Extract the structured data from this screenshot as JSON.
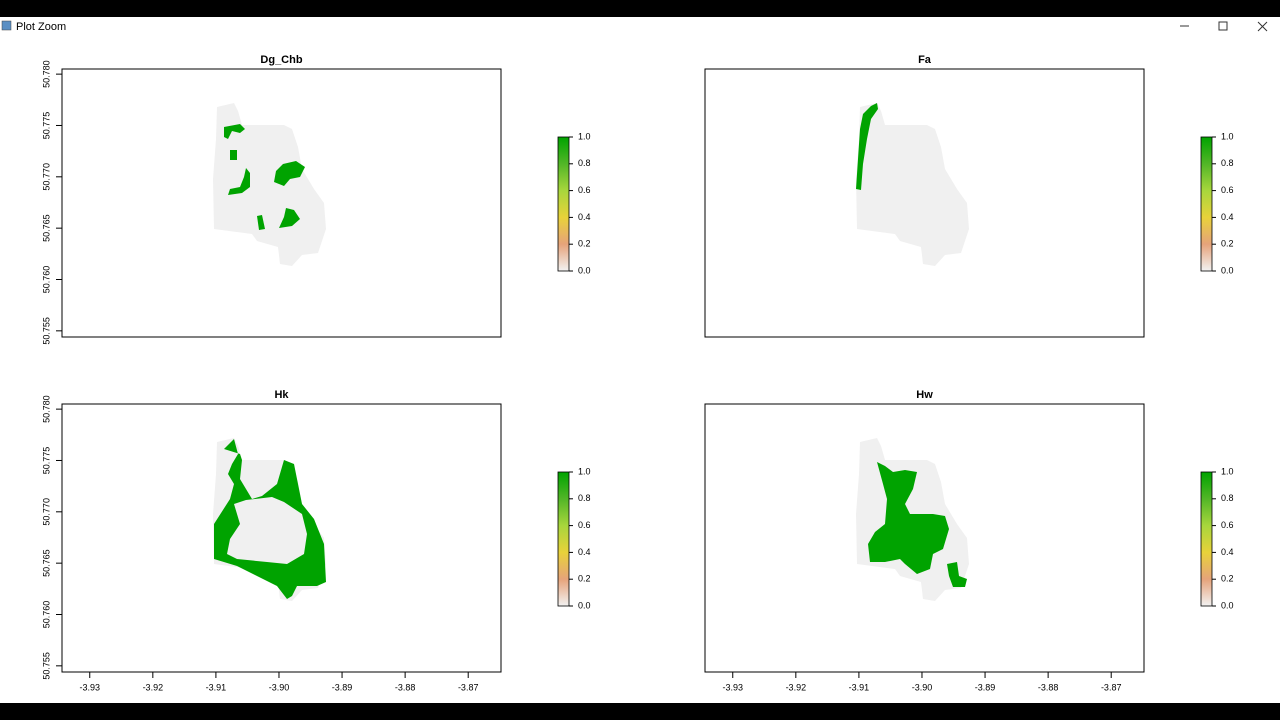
{
  "window": {
    "title": "Plot Zoom"
  },
  "chart_data": [
    {
      "type": "raster",
      "title": "Dg_Chb",
      "xlim": [
        -3.9344,
        -3.8648
      ],
      "ylim": [
        50.7544,
        50.7805
      ],
      "yticks": [
        {
          "value": 50.755,
          "label": "50.755"
        },
        {
          "value": 50.76,
          "label": "50.760"
        },
        {
          "value": 50.765,
          "label": "50.765"
        },
        {
          "value": 50.77,
          "label": "50.770"
        },
        {
          "value": 50.775,
          "label": "50.775"
        },
        {
          "value": 50.78,
          "label": "50.780"
        }
      ],
      "colorbar": {
        "lim": [
          0,
          1
        ],
        "colors": [
          "#f2f2f2",
          "#e6a37a",
          "#e8d23a",
          "#a8d63c",
          "#52b627",
          "#00a300"
        ],
        "ticks": [
          {
            "value": 0,
            "label": "0.0"
          },
          0.2,
          0.4,
          0.6,
          0.8,
          {
            "value": 1,
            "label": "1.0"
          }
        ]
      }
    },
    {
      "type": "raster",
      "title": "Fa",
      "xlim": [
        -3.9344,
        -3.8648
      ],
      "ylim": [
        50.7544,
        50.7805
      ],
      "colorbar": {
        "lim": [
          0,
          1
        ],
        "colors": [
          "#f2f2f2",
          "#e6a37a",
          "#e8d23a",
          "#a8d63c",
          "#52b627",
          "#00a300"
        ],
        "ticks": [
          {
            "value": 0,
            "label": "0.0"
          },
          0.2,
          0.4,
          0.6,
          0.8,
          {
            "value": 1,
            "label": "1.0"
          }
        ]
      }
    },
    {
      "type": "raster",
      "title": "Hk",
      "xlim": [
        -3.9344,
        -3.8648
      ],
      "ylim": [
        50.7544,
        50.7805
      ],
      "xticks": [
        -3.93,
        -3.92,
        -3.91,
        {
          "value": -3.9,
          "label": "-3.90"
        },
        -3.89,
        -3.88,
        -3.87
      ],
      "yticks": [
        {
          "value": 50.755,
          "label": "50.755"
        },
        {
          "value": 50.76,
          "label": "50.760"
        },
        {
          "value": 50.765,
          "label": "50.765"
        },
        {
          "value": 50.77,
          "label": "50.770"
        },
        {
          "value": 50.775,
          "label": "50.775"
        },
        {
          "value": 50.78,
          "label": "50.780"
        }
      ],
      "colorbar": {
        "lim": [
          0,
          1
        ],
        "colors": [
          "#f2f2f2",
          "#e6a37a",
          "#e8d23a",
          "#a8d63c",
          "#52b627",
          "#00a300"
        ],
        "ticks": [
          {
            "value": 0,
            "label": "0.0"
          },
          0.2,
          0.4,
          0.6,
          0.8,
          {
            "value": 1,
            "label": "1.0"
          }
        ]
      }
    },
    {
      "type": "raster",
      "title": "Hw",
      "xlim": [
        -3.9344,
        -3.8648
      ],
      "ylim": [
        50.7544,
        50.7805
      ],
      "xticks": [
        -3.93,
        -3.92,
        -3.91,
        {
          "value": -3.9,
          "label": "-3.90"
        },
        -3.89,
        -3.88,
        -3.87
      ],
      "colorbar": {
        "lim": [
          0,
          1
        ],
        "colors": [
          "#f2f2f2",
          "#e6a37a",
          "#e8d23a",
          "#a8d63c",
          "#52b627",
          "#00a300"
        ],
        "ticks": [
          {
            "value": 0,
            "label": "0.0"
          },
          0.2,
          0.4,
          0.6,
          0.8,
          {
            "value": 1,
            "label": "1.0"
          }
        ]
      }
    }
  ]
}
